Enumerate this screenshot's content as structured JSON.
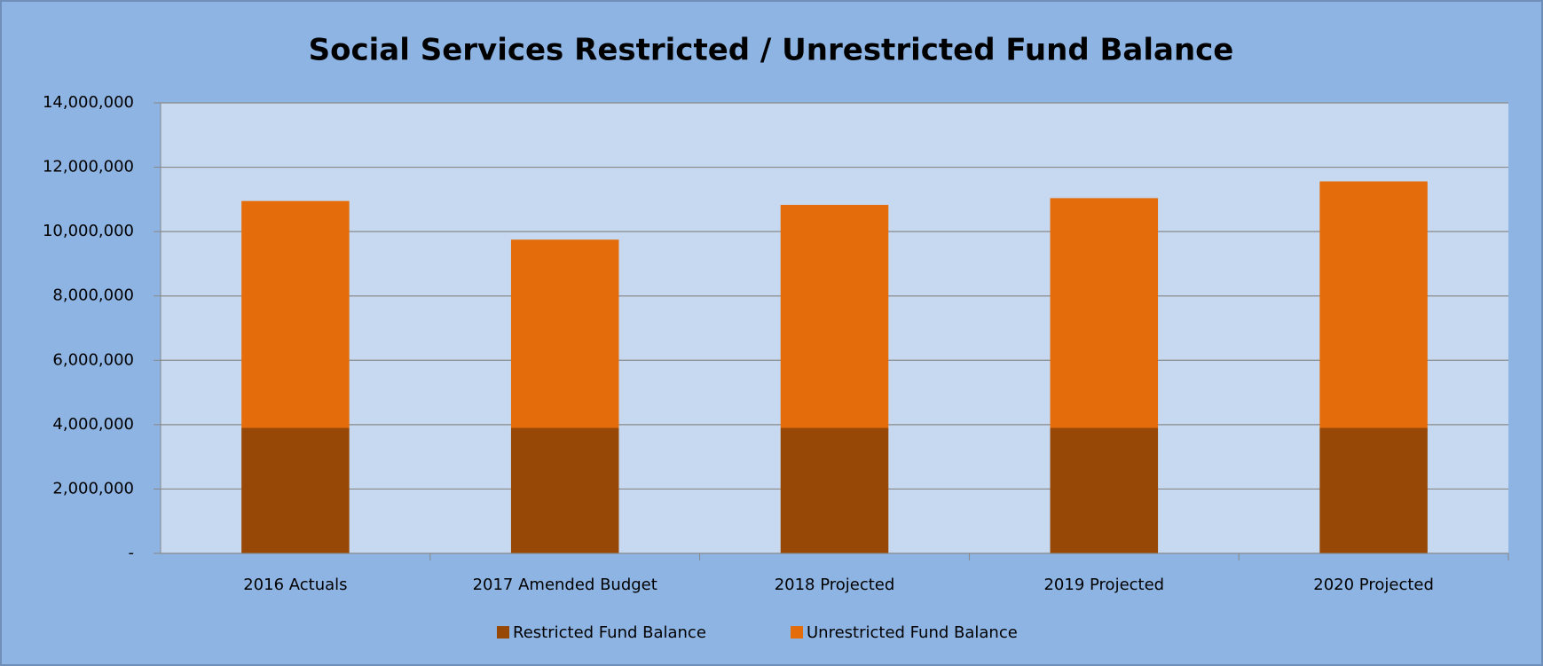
{
  "chart_data": {
    "type": "stacked_bar",
    "title": "Social Services Restricted / Unrestricted Fund Balance",
    "categories": [
      "2016 Actuals",
      "2017 Amended Budget",
      "2018 Projected",
      "2019 Projected",
      "2020 Projected"
    ],
    "series": [
      {
        "name": "Restricted Fund Balance",
        "color": "#974806",
        "values": [
          3900000,
          3900000,
          3900000,
          3900000,
          3900000
        ]
      },
      {
        "name": "Unrestricted Fund Balance",
        "color": "#e46c0a",
        "values": [
          7050000,
          5850000,
          6930000,
          7140000,
          7660000
        ]
      }
    ],
    "ylim": [
      0,
      14000000
    ],
    "yticks": [
      {
        "value": 0,
        "label": "-"
      },
      {
        "value": 2000000,
        "label": "2,000,000"
      },
      {
        "value": 4000000,
        "label": "4,000,000"
      },
      {
        "value": 6000000,
        "label": "6,000,000"
      },
      {
        "value": 8000000,
        "label": "8,000,000"
      },
      {
        "value": 10000000,
        "label": "10,000,000"
      },
      {
        "value": 12000000,
        "label": "12,000,000"
      },
      {
        "value": 14000000,
        "label": "14,000,000"
      }
    ],
    "grid": true,
    "legend": "bottom"
  }
}
